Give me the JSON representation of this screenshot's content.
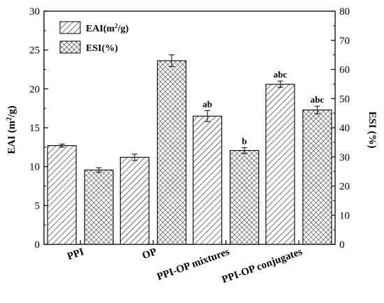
{
  "chart_data": {
    "type": "bar",
    "categories": [
      "PPI",
      "OP",
      "PPI-OP mixtures",
      "PPI-OP conjugates"
    ],
    "series": [
      {
        "name": "EAI(m²/g)",
        "axis": "left",
        "pattern": "diagonal-hatch",
        "values": [
          12.7,
          11.2,
          16.5,
          20.6
        ],
        "errors": [
          0.2,
          0.4,
          0.7,
          0.4
        ],
        "labels": [
          "",
          "",
          "ab",
          "abc"
        ]
      },
      {
        "name": "ESI(%)",
        "axis": "right",
        "pattern": "crosshatch",
        "values": [
          25.5,
          63.0,
          32.2,
          46.1
        ],
        "errors": [
          0.8,
          2.0,
          1.0,
          1.3
        ],
        "labels": [
          "",
          "",
          "b",
          "abc"
        ]
      }
    ],
    "y_left": {
      "label": "EAI (m²/g)",
      "range": [
        0,
        30
      ],
      "ticks": [
        "0",
        "5",
        "10",
        "15",
        "20",
        "25",
        "30"
      ]
    },
    "y_right": {
      "label": "ESI (%)",
      "range": [
        0,
        80
      ],
      "ticks": [
        "0",
        "10",
        "20",
        "30",
        "40",
        "50",
        "60",
        "70",
        "80"
      ]
    },
    "legend": {
      "position": "top-left",
      "items": [
        {
          "label_main": "EAI(m",
          "label_sup": "2",
          "label_tail": "/g)",
          "pattern": "diagonal-hatch"
        },
        {
          "label_main": "ESI(%)",
          "label_sup": "",
          "label_tail": "",
          "pattern": "crosshatch"
        }
      ]
    },
    "axis_titles": {
      "left_main": "EAI (m",
      "left_sup": "2",
      "left_tail": "/g)",
      "right": "ESI (%)"
    },
    "grid": false
  }
}
